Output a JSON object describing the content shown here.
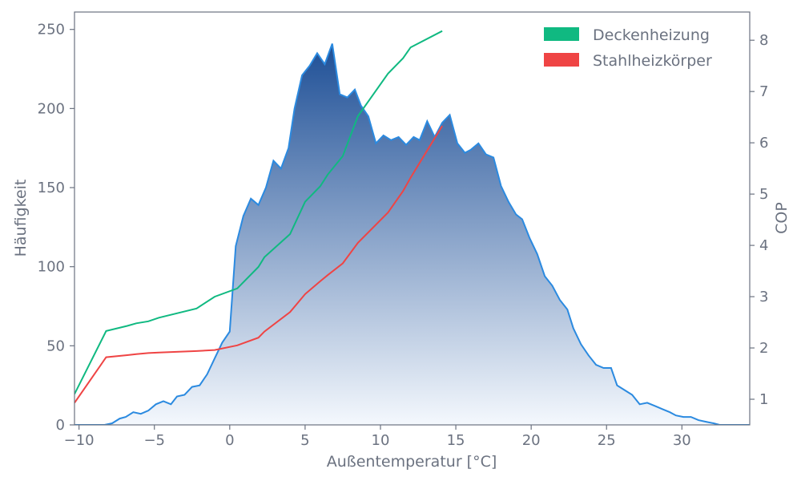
{
  "chart_data": {
    "type": "area",
    "xlabel": "Außentemperatur [°C]",
    "ylabel": "Häufigkeit",
    "y2label": "COP",
    "xlim": [
      -10.3,
      34.5
    ],
    "ylim": [
      0,
      261
    ],
    "y2lim": [
      0.5,
      8.55
    ],
    "x_ticks": [
      -10,
      -5,
      0,
      5,
      10,
      15,
      20,
      25,
      30
    ],
    "x_tick_labels": [
      "−10",
      "−5",
      "0",
      "5",
      "10",
      "15",
      "20",
      "25",
      "30"
    ],
    "y_ticks": [
      0,
      50,
      100,
      150,
      200,
      250
    ],
    "y2_ticks": [
      1,
      2,
      3,
      4,
      5,
      6,
      7,
      8
    ],
    "grid": false,
    "legend_position": "top-right",
    "histogram": {
      "color": "#2b8ae0",
      "fill_top": "#1e4f96",
      "fill_bottom": "#f4f8fd",
      "x": [
        -10.3,
        -9.8,
        -9.3,
        -8.8,
        -8.3,
        -7.8,
        -7.3,
        -6.9,
        -6.4,
        -5.9,
        -5.4,
        -4.9,
        -4.4,
        -3.9,
        -3.5,
        -3.0,
        -2.5,
        -2.0,
        -1.5,
        -1.0,
        -0.5,
        0.0,
        0.4,
        0.9,
        1.4,
        1.9,
        2.4,
        2.9,
        3.4,
        3.9,
        4.3,
        4.8,
        5.3,
        5.8,
        6.3,
        6.8,
        7.3,
        7.8,
        8.3,
        8.7,
        9.2,
        9.7,
        10.2,
        10.7,
        11.2,
        11.7,
        12.2,
        12.6,
        13.1,
        13.6,
        14.1,
        14.6,
        15.1,
        15.6,
        16.0,
        16.5,
        17.0,
        17.5,
        18.0,
        18.5,
        19.0,
        19.4,
        19.9,
        20.4,
        20.9,
        21.4,
        21.9,
        22.4,
        22.8,
        23.3,
        23.8,
        24.3,
        24.8,
        25.3,
        25.7,
        26.2,
        26.7,
        27.2,
        27.7,
        28.2,
        28.7,
        29.2,
        29.6,
        30.1,
        30.6,
        31.1,
        31.6,
        32.1,
        32.5,
        33.0,
        33.5,
        34.0,
        34.5
      ],
      "values": [
        0,
        0,
        0,
        0,
        0,
        1,
        4,
        5,
        8,
        7,
        9,
        13,
        15,
        13,
        18,
        19,
        24,
        25,
        32,
        42,
        52,
        59,
        113,
        132,
        143,
        139,
        150,
        167,
        162,
        175,
        200,
        221,
        227,
        235,
        228,
        241,
        209,
        207,
        212,
        202,
        195,
        178,
        183,
        180,
        182,
        177,
        182,
        180,
        192,
        182,
        191,
        196,
        178,
        172,
        174,
        178,
        171,
        169,
        151,
        141,
        133,
        130,
        118,
        108,
        94,
        88,
        79,
        73,
        61,
        51,
        44,
        38,
        36,
        36,
        25,
        22,
        19,
        13,
        14,
        12,
        10,
        8,
        6,
        5,
        5,
        3,
        2,
        1,
        0,
        0,
        0,
        0,
        0
      ],
      "peak_labels": []
    },
    "series": [
      {
        "name": "Deckenheizung",
        "color": "#10b981",
        "x": [
          -10.3,
          -8.2,
          -6.8,
          -6.2,
          -5.4,
          -4.7,
          -2.2,
          -1.0,
          0.5,
          1.9,
          2.3,
          4.0,
          5.0,
          6.0,
          6.5,
          7.5,
          8.5,
          10.5,
          11.5,
          12.0,
          14.1
        ],
        "values": [
          1.1,
          2.33,
          2.43,
          2.48,
          2.52,
          2.59,
          2.77,
          3.0,
          3.16,
          3.58,
          3.77,
          4.22,
          4.85,
          5.15,
          5.38,
          5.74,
          6.52,
          7.35,
          7.65,
          7.86,
          8.18
        ]
      },
      {
        "name": "Stahlheizkörper",
        "color": "#ef4444",
        "x": [
          -10.3,
          -8.2,
          -6.8,
          -6.2,
          -5.4,
          -4.7,
          -2.2,
          -1.0,
          0.5,
          1.9,
          2.3,
          4.0,
          5.0,
          6.0,
          6.5,
          7.5,
          8.5,
          10.5,
          11.5,
          12.0,
          14.1
        ],
        "values": [
          0.93,
          1.82,
          1.86,
          1.88,
          1.9,
          1.91,
          1.94,
          1.96,
          2.05,
          2.2,
          2.32,
          2.7,
          3.05,
          3.3,
          3.42,
          3.65,
          4.05,
          4.64,
          5.06,
          5.32,
          6.33
        ]
      }
    ]
  }
}
